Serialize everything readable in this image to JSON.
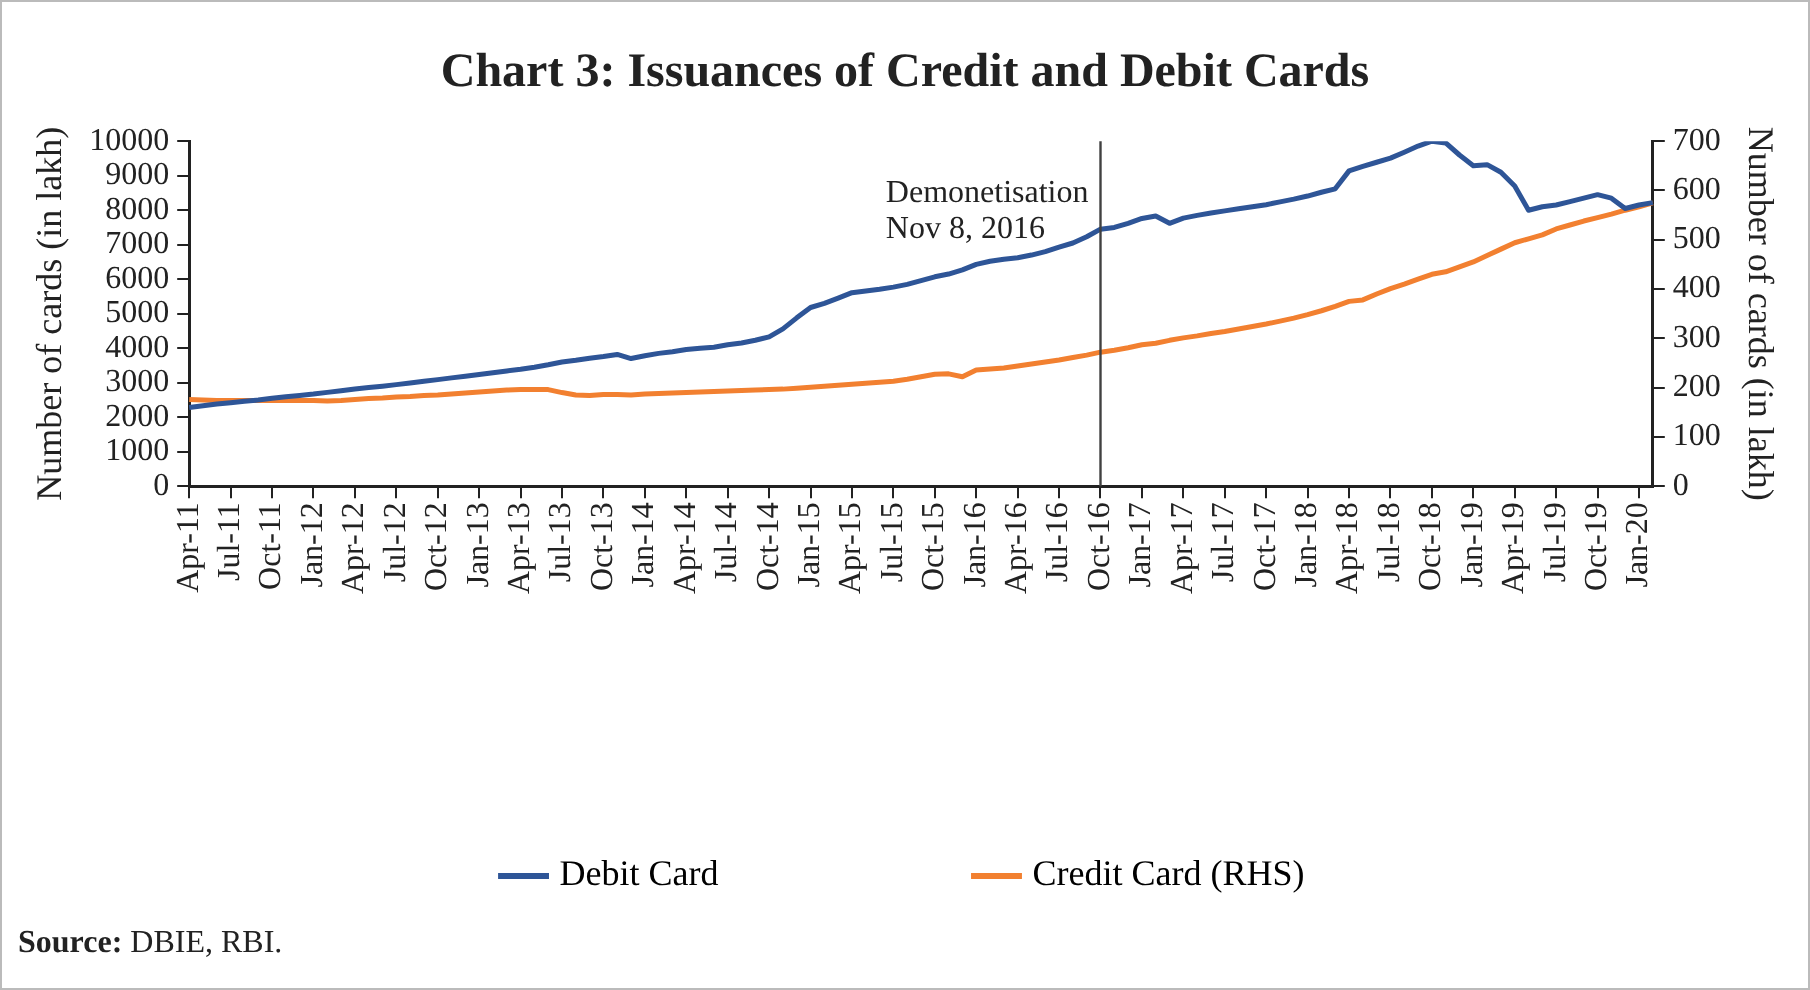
{
  "chart_data": {
    "type": "line",
    "title": "Chart 3: Issuances of Credit and Debit Cards",
    "categories": [
      "Apr-11",
      null,
      null,
      "Jul-11",
      null,
      null,
      "Oct-11",
      null,
      null,
      "Jan-12",
      null,
      null,
      "Apr-12",
      null,
      null,
      "Jul-12",
      null,
      null,
      "Oct-12",
      null,
      null,
      "Jan-13",
      null,
      null,
      "Apr-13",
      null,
      null,
      "Jul-13",
      null,
      null,
      "Oct-13",
      null,
      null,
      "Jan-14",
      null,
      null,
      "Apr-14",
      null,
      null,
      "Jul-14",
      null,
      null,
      "Oct-14",
      null,
      null,
      "Jan-15",
      null,
      null,
      "Apr-15",
      null,
      null,
      "Jul-15",
      null,
      null,
      "Oct-15",
      null,
      null,
      "Jan-16",
      null,
      null,
      "Apr-16",
      null,
      null,
      "Jul-16",
      null,
      null,
      "Oct-16",
      null,
      null,
      "Jan-17",
      null,
      null,
      "Apr-17",
      null,
      null,
      "Jul-17",
      null,
      null,
      "Oct-17",
      null,
      null,
      "Jan-18",
      null,
      null,
      "Apr-18",
      null,
      null,
      "Jul-18",
      null,
      null,
      "Oct-18",
      null,
      null,
      "Jan-19",
      null,
      null,
      "Apr-19",
      null,
      null,
      "Jul-19",
      null,
      null,
      "Oct-19",
      null,
      null,
      "Jan-20",
      null
    ],
    "series": [
      {
        "name": "Debit Card",
        "color": "#2e5597",
        "values": [
          2280,
          2330,
          2380,
          2420,
          2460,
          2500,
          2550,
          2590,
          2630,
          2670,
          2720,
          2770,
          2820,
          2860,
          2900,
          2945,
          2990,
          3040,
          3090,
          3140,
          3190,
          3240,
          3290,
          3340,
          3390,
          3450,
          3520,
          3600,
          3650,
          3710,
          3760,
          3820,
          3700,
          3780,
          3850,
          3900,
          3960,
          4000,
          4030,
          4100,
          4150,
          4230,
          4330,
          4560,
          4880,
          5180,
          5300,
          5450,
          5610,
          5660,
          5710,
          5770,
          5850,
          5960,
          6070,
          6150,
          6270,
          6430,
          6520,
          6580,
          6620,
          6700,
          6800,
          6930,
          7050,
          7230,
          7450,
          7500,
          7620,
          7760,
          7830,
          7620,
          7770,
          7850,
          7920,
          7980,
          8040,
          8100,
          8160,
          8240,
          8320,
          8410,
          8520,
          8620,
          9140,
          9270,
          9390,
          9510,
          9680,
          9860,
          10000,
          9950,
          9600,
          9290,
          9320,
          9100,
          8700,
          8000,
          8100,
          8150,
          8250,
          8350,
          8450,
          8350,
          8050,
          8150,
          8220
        ]
      },
      {
        "name": "Credit Card (RHS)",
        "color": "#f28030",
        "axis": "y2",
        "values": [
          176,
          175,
          174,
          174,
          174,
          174,
          174,
          174,
          174,
          174,
          173,
          174,
          176,
          178,
          179,
          181,
          182,
          184,
          185,
          187,
          189,
          191,
          193,
          195,
          196,
          196,
          196,
          190,
          185,
          184,
          186,
          186,
          185,
          187,
          188,
          189,
          190,
          191,
          192,
          193,
          194,
          195,
          196,
          197,
          199,
          201,
          203,
          205,
          207,
          209,
          211,
          213,
          217,
          222,
          227,
          228,
          222,
          236,
          238,
          240,
          244,
          248,
          252,
          256,
          261,
          266,
          272,
          276,
          281,
          287,
          290,
          296,
          301,
          305,
          310,
          314,
          319,
          324,
          329,
          335,
          341,
          348,
          356,
          365,
          375,
          378,
          390,
          401,
          410,
          420,
          430,
          435,
          445,
          455,
          468,
          481,
          494,
          502,
          510,
          522,
          530,
          538,
          545,
          552,
          560,
          567,
          575
        ]
      }
    ],
    "ylabel": "Number of cards (in lakh)",
    "y2label": "Number of cards (in lakh)",
    "ylim": [
      0,
      10000
    ],
    "yticks": [
      0,
      1000,
      2000,
      3000,
      4000,
      5000,
      6000,
      7000,
      8000,
      9000,
      10000
    ],
    "y2lim": [
      0,
      700
    ],
    "y2ticks": [
      0,
      100,
      200,
      300,
      400,
      500,
      600,
      700
    ],
    "ref_lines": [
      {
        "axis": "x",
        "value": "Oct-16",
        "label": "Demonetisation\nNov 8, 2016",
        "color": "#404040"
      }
    ],
    "annotations": [
      "Source: DBIE, RBI."
    ],
    "grid": false,
    "legend": "bottom",
    "marker": "none",
    "line_style": "solid"
  }
}
